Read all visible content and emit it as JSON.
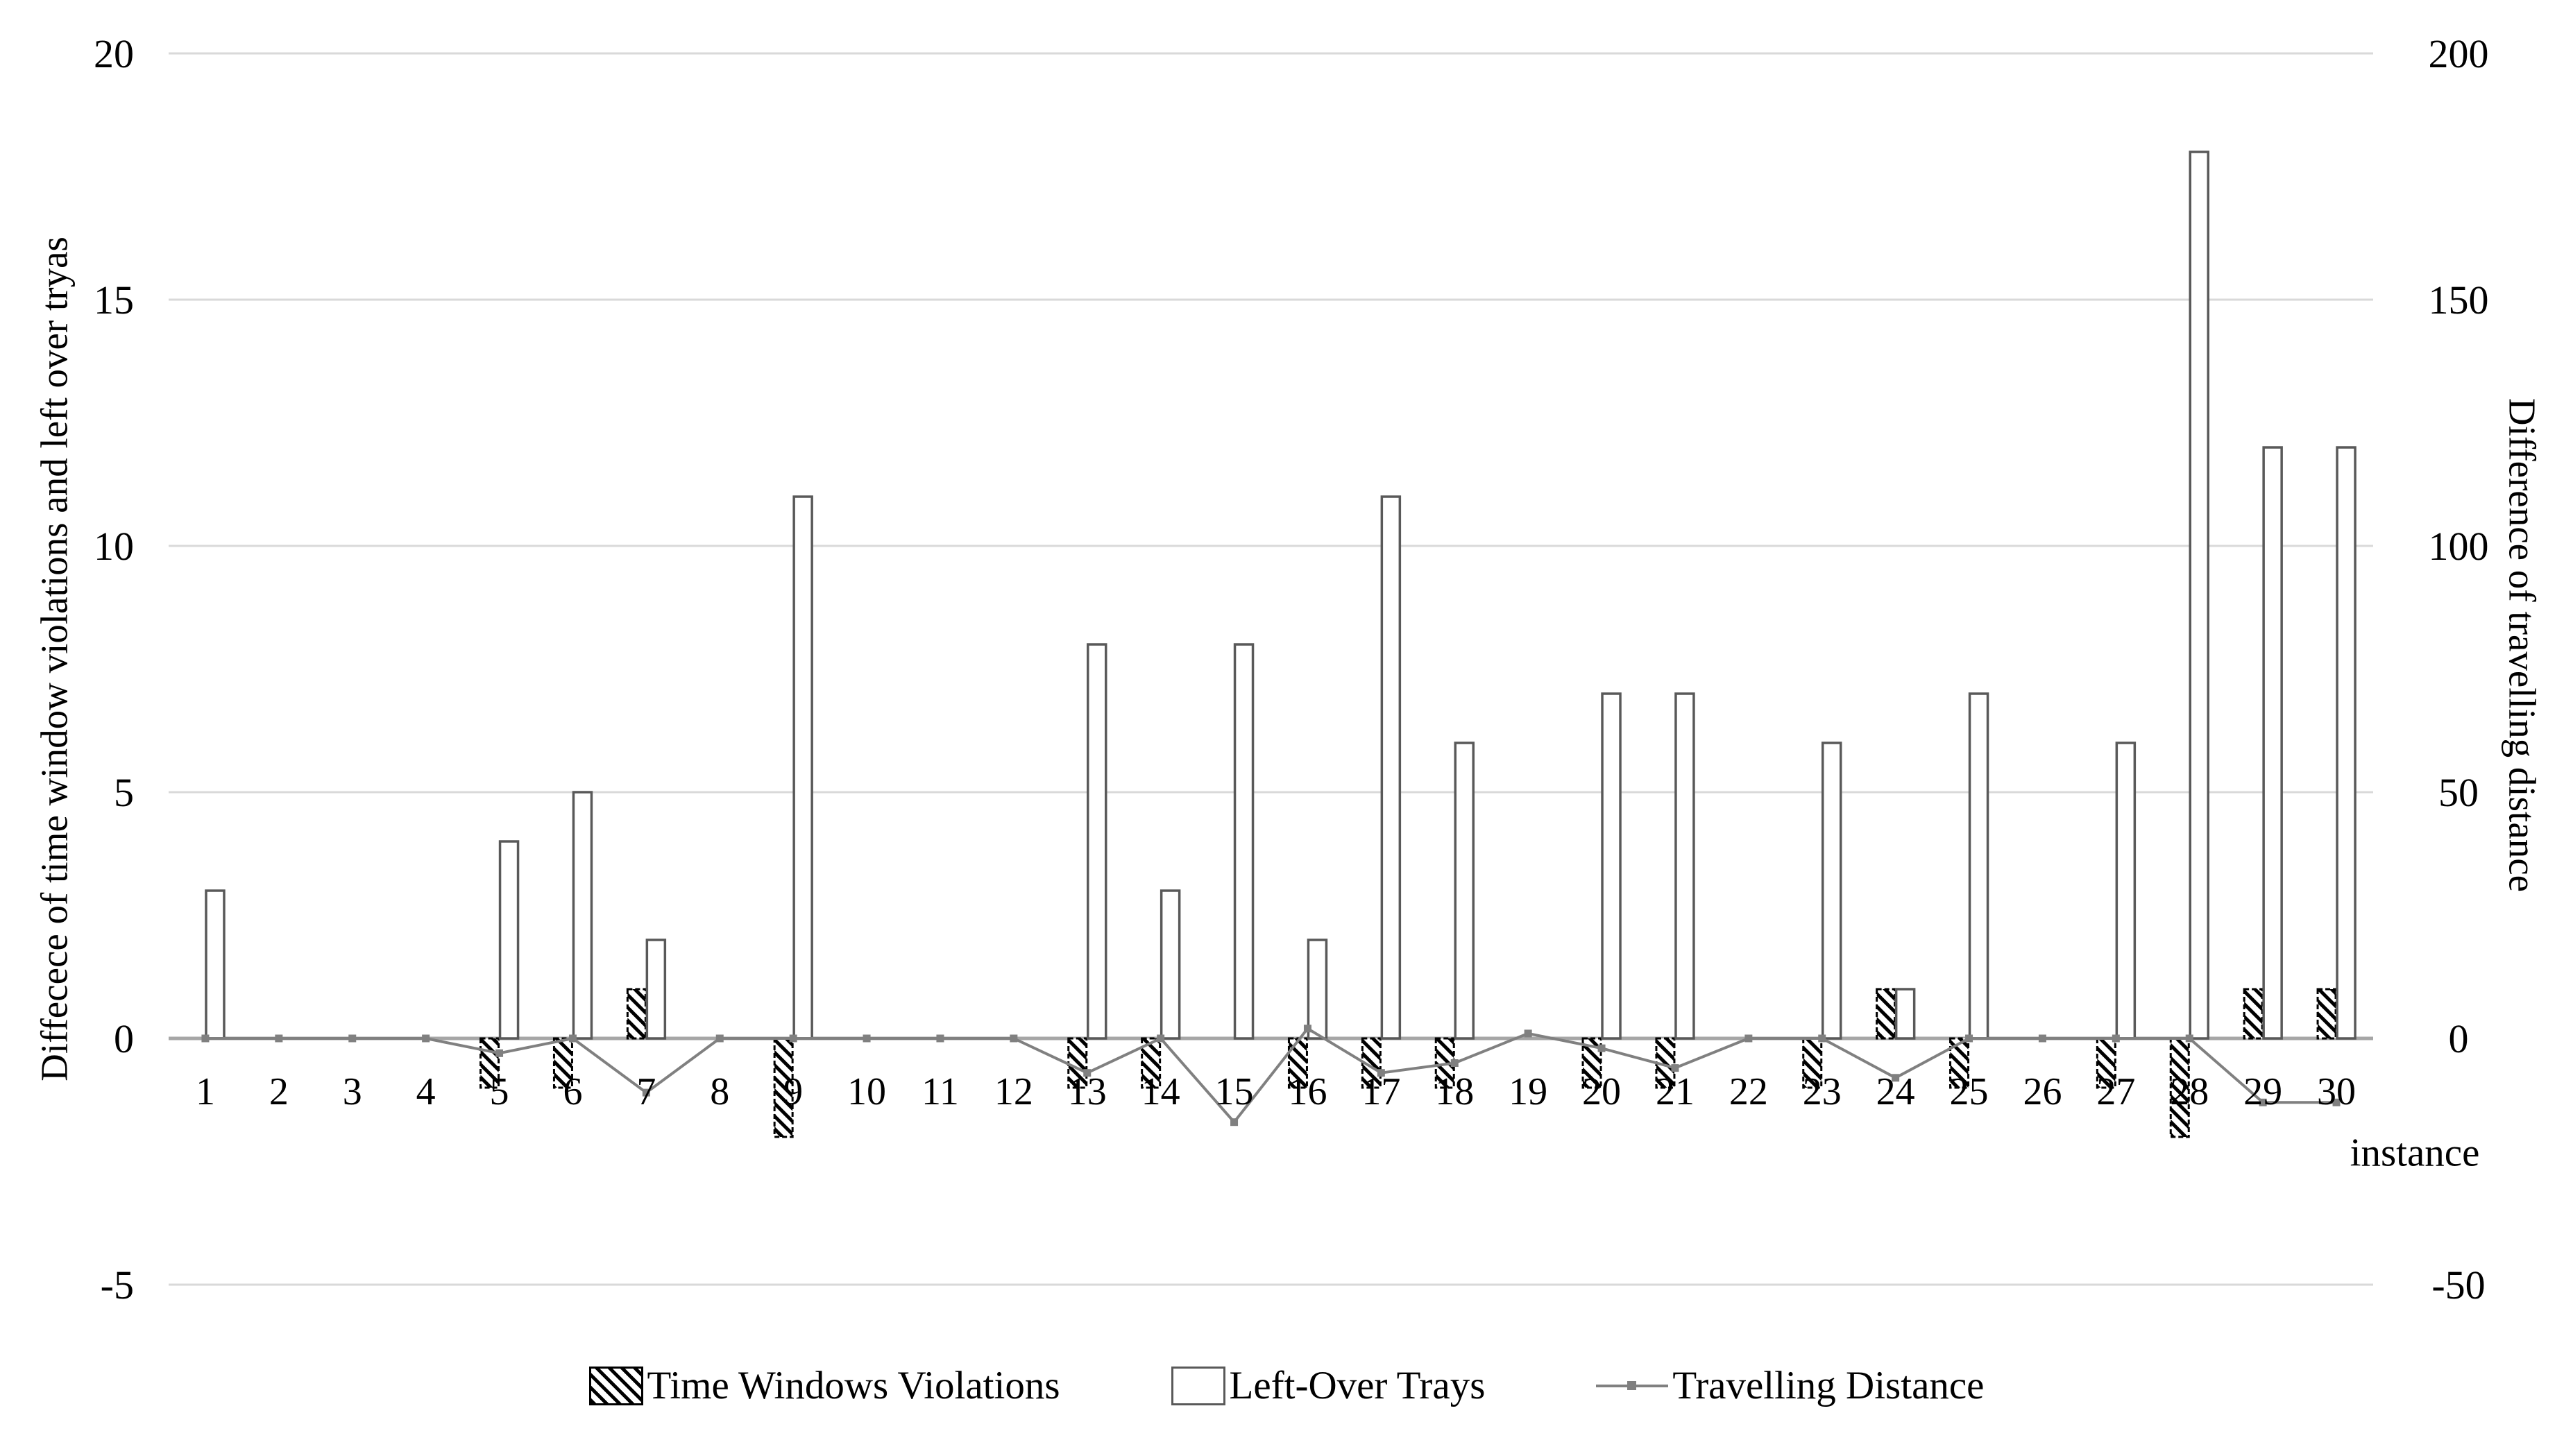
{
  "figure": {
    "left_axis": {
      "title": "Diffecece of time window violations and left over tryas",
      "ticks": [
        20,
        15,
        10,
        5,
        0,
        -5
      ],
      "min": -5,
      "max": 20
    },
    "right_axis": {
      "title": "Difference of travelling distance",
      "ticks": [
        200,
        150,
        100,
        50,
        0,
        -50
      ],
      "min": -50,
      "max": 200
    },
    "x_axis": {
      "title": "instance",
      "categories": [
        1,
        2,
        3,
        4,
        5,
        6,
        7,
        8,
        9,
        10,
        11,
        12,
        13,
        14,
        15,
        16,
        17,
        18,
        19,
        20,
        21,
        22,
        23,
        24,
        25,
        26,
        27,
        28,
        29,
        30
      ]
    }
  },
  "chart_data": {
    "type": "bar",
    "subtype": "dual-axis bar + line combo",
    "categories": [
      1,
      2,
      3,
      4,
      5,
      6,
      7,
      8,
      9,
      10,
      11,
      12,
      13,
      14,
      15,
      16,
      17,
      18,
      19,
      20,
      21,
      22,
      23,
      24,
      25,
      26,
      27,
      28,
      29,
      30
    ],
    "series": [
      {
        "name": "Time Windows Violations",
        "type": "bar",
        "style": "hatched",
        "axis": "left",
        "color": "#000000",
        "values": [
          0,
          0,
          0,
          0,
          -1,
          -1,
          1,
          0,
          -2,
          0,
          0,
          0,
          -1,
          -1,
          0,
          -1,
          -1,
          -1,
          0,
          -1,
          -1,
          0,
          -1,
          1,
          -1,
          0,
          -1,
          -2,
          1,
          1
        ]
      },
      {
        "name": "Left-Over Trays",
        "type": "bar",
        "style": "outline",
        "axis": "left",
        "color": "#595959",
        "values": [
          3,
          0,
          0,
          0,
          4,
          5,
          2,
          0,
          11,
          0,
          0,
          0,
          8,
          3,
          8,
          2,
          11,
          6,
          0,
          7,
          7,
          0,
          6,
          1,
          7,
          0,
          6,
          18,
          12,
          12
        ]
      },
      {
        "name": "Travelling Distance",
        "type": "line",
        "axis": "right",
        "color": "#808080",
        "marker": "square",
        "values": [
          0,
          0,
          0,
          0,
          -3,
          0,
          -11,
          0,
          0,
          0,
          0,
          0,
          -7,
          0,
          -17,
          2,
          -7,
          -5,
          1,
          -2,
          -6,
          0,
          0,
          -8,
          0,
          0,
          0,
          0,
          -13,
          -13
        ]
      }
    ],
    "title": "",
    "xlabel": "instance",
    "ylabel_left": "Diffecece of time window violations and left over tryas",
    "ylabel_right": "Difference of travelling distance",
    "left_ylim": [
      -5,
      20
    ],
    "right_ylim": [
      -50,
      200
    ],
    "grid": true,
    "gridline_color": "#d9d9d9",
    "zero_axis_color": "#a6a6a6",
    "legend_position": "bottom"
  },
  "legend": {
    "items": [
      {
        "label": "Time Windows Violations",
        "swatch": "hatched-box"
      },
      {
        "label": "Left-Over Trays",
        "swatch": "outline-box"
      },
      {
        "label": "Travelling Distance",
        "swatch": "line-marker"
      }
    ]
  }
}
